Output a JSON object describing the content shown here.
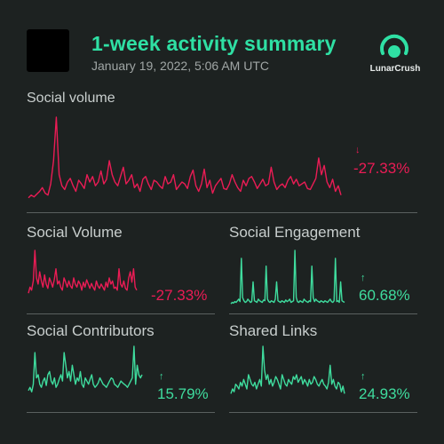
{
  "header": {
    "title": "1-week activity summary",
    "timestamp": "January 19, 2022, 5:06 AM UTC",
    "brand_name": "LunarCrush"
  },
  "colors": {
    "accent": "#2fe0a4",
    "negative": "#ea1c55",
    "positive": "#3fdc9e",
    "background": "#1d2221"
  },
  "icons": {
    "brand": "lunarcrush-logo-icon",
    "profile": "coin-logo-placeholder"
  },
  "main": {
    "label": "Social volume",
    "change": "-27.33%",
    "direction": "down",
    "arrow": "↓"
  },
  "tiles": [
    {
      "label": "Social Volume",
      "change": "-27.33%",
      "direction": "down",
      "arrow": "↓"
    },
    {
      "label": "Social Engagement",
      "change": "60.68%",
      "direction": "up",
      "arrow": "↑"
    },
    {
      "label": "Social Contributors",
      "change": "15.79%",
      "direction": "up",
      "arrow": "↑"
    },
    {
      "label": "Shared Links",
      "change": "24.93%",
      "direction": "up",
      "arrow": "↑"
    }
  ],
  "chart_data": [
    {
      "type": "line",
      "series": [
        {
          "values": [
            5,
            8,
            6,
            9,
            12,
            16,
            10,
            8,
            20,
            45,
            92,
            30,
            18,
            14,
            22,
            26,
            18,
            12,
            24,
            20,
            15,
            30,
            22,
            28,
            18,
            22,
            34,
            20,
            25,
            45,
            30,
            22,
            18,
            28,
            38,
            20,
            24,
            30,
            16,
            20,
            12,
            25,
            28,
            20,
            14,
            24,
            22,
            18,
            15,
            28,
            20,
            22,
            30,
            14,
            18,
            22,
            20,
            15,
            28,
            35,
            18,
            12,
            20,
            36,
            16,
            24,
            10,
            18,
            22,
            26,
            15,
            14,
            20,
            30,
            22,
            16,
            12,
            24,
            18,
            26,
            28,
            22,
            15,
            20,
            25,
            18,
            20,
            38,
            22,
            14,
            18,
            20,
            16,
            24,
            28,
            20,
            25,
            18,
            20,
            22,
            15,
            14,
            20,
            26,
            48,
            30,
            40,
            22,
            16,
            25,
            12,
            18,
            8
          ]
        }
      ]
    },
    {
      "type": "line",
      "series": [
        {
          "values": [
            20,
            30,
            25,
            40,
            90,
            45,
            35,
            55,
            40,
            30,
            50,
            35,
            28,
            45,
            38,
            30,
            42,
            60,
            35,
            40,
            30,
            25,
            45,
            38,
            30,
            40,
            32,
            28,
            45,
            35,
            30,
            40,
            35,
            25,
            38,
            30,
            42,
            35,
            28,
            36,
            30,
            25,
            40,
            32,
            28,
            35,
            30,
            25,
            38,
            30,
            45,
            35,
            40,
            28,
            30,
            25,
            60,
            35,
            30,
            40,
            28,
            25,
            45,
            55,
            38,
            60,
            30,
            25
          ]
        }
      ]
    },
    {
      "type": "line",
      "series": [
        {
          "values": [
            2,
            4,
            3,
            5,
            4,
            6,
            8,
            5,
            60,
            10,
            6,
            4,
            5,
            8,
            6,
            4,
            5,
            30,
            6,
            5,
            4,
            8,
            6,
            5,
            4,
            7,
            6,
            50,
            8,
            5,
            4,
            6,
            5,
            4,
            8,
            30,
            6,
            5,
            4,
            6,
            5,
            4,
            7,
            5,
            6,
            8,
            4,
            5,
            6,
            70,
            10,
            5,
            4,
            6,
            5,
            4,
            8,
            6,
            5,
            4,
            6,
            5,
            50,
            10,
            5,
            8,
            6,
            5,
            4,
            6,
            5,
            4,
            6,
            5,
            4,
            6,
            8,
            5,
            4,
            6,
            60,
            5,
            6,
            4,
            30,
            6,
            5,
            4
          ]
        }
      ]
    },
    {
      "type": "line",
      "series": [
        {
          "values": [
            20,
            25,
            18,
            30,
            80,
            40,
            45,
            30,
            25,
            35,
            40,
            28,
            45,
            50,
            35,
            30,
            40,
            25,
            30,
            38,
            45,
            35,
            80,
            60,
            40,
            50,
            35,
            60,
            45,
            30,
            40,
            35,
            50,
            30,
            25,
            40,
            35,
            30,
            38,
            45,
            30,
            25,
            28,
            32,
            40,
            35,
            30,
            28,
            25,
            30,
            35,
            40,
            38,
            30,
            28,
            25,
            30,
            35,
            32,
            30,
            28,
            25,
            30,
            35,
            40,
            90,
            30,
            60,
            45,
            40,
            45
          ]
        }
      ]
    },
    {
      "type": "line",
      "series": [
        {
          "values": [
            10,
            15,
            12,
            20,
            18,
            15,
            22,
            18,
            25,
            20,
            15,
            30,
            25,
            20,
            18,
            22,
            15,
            20,
            25,
            18,
            60,
            35,
            25,
            30,
            20,
            25,
            18,
            22,
            28,
            25,
            20,
            15,
            30,
            25,
            20,
            18,
            25,
            22,
            20,
            28,
            25,
            30,
            22,
            25,
            28,
            20,
            25,
            22,
            18,
            25,
            20,
            22,
            28,
            25,
            20,
            18,
            22,
            25,
            20,
            18,
            15,
            22,
            40,
            20,
            25,
            18,
            15,
            22,
            20,
            12,
            18,
            10
          ]
        }
      ]
    }
  ]
}
